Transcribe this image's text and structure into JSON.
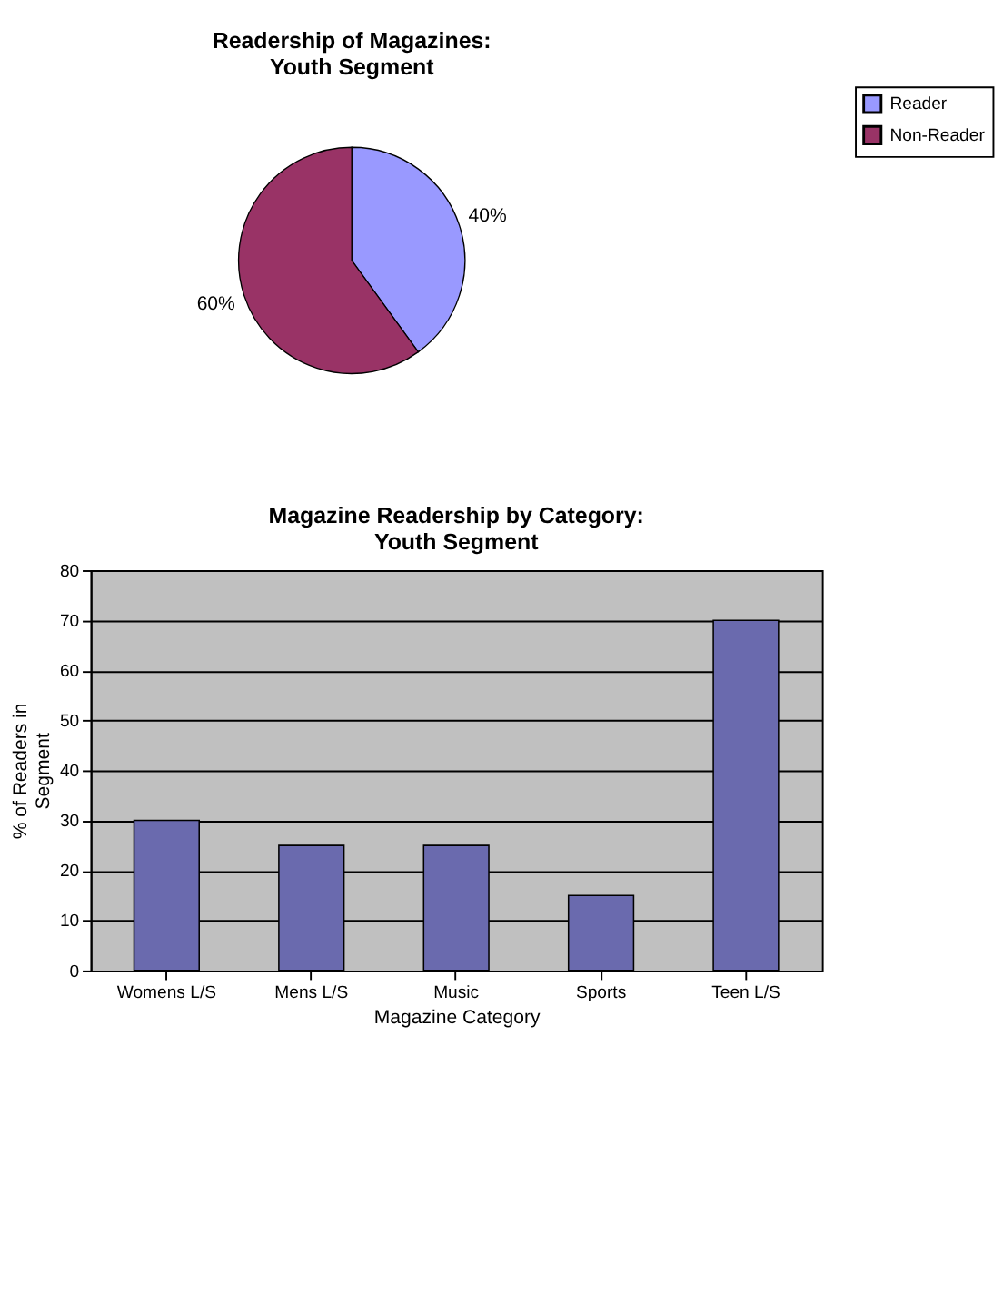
{
  "chart_data": [
    {
      "type": "pie",
      "title": [
        "Readership of Magazines:",
        "Youth Segment"
      ],
      "categories": [
        "Reader",
        "Non-Reader"
      ],
      "values": [
        40,
        60
      ],
      "colors": [
        "#9999ff",
        "#993366"
      ],
      "value_labels": [
        "40%",
        "60%"
      ],
      "legend": "right"
    },
    {
      "type": "bar",
      "title": [
        "Magazine Readership by Category:",
        "Youth Segment"
      ],
      "categories": [
        "Womens L/S",
        "Mens L/S",
        "Music",
        "Sports",
        "Teen L/S"
      ],
      "values": [
        30,
        25,
        25,
        15,
        70
      ],
      "color": "#6a6aae",
      "xlabel": "Magazine Category",
      "ylabel": [
        "% of Readers in",
        "Segment"
      ],
      "ylim": [
        0,
        80
      ],
      "yticks": [
        0,
        10,
        20,
        30,
        40,
        50,
        60,
        70,
        80
      ],
      "grid": "y"
    }
  ]
}
